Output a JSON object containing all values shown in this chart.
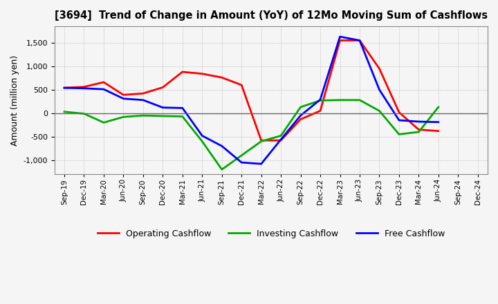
{
  "title": "[3694]  Trend of Change in Amount (YoY) of 12Mo Moving Sum of Cashflows",
  "ylabel": "Amount (million yen)",
  "labels": [
    "Sep-19",
    "Dec-19",
    "Mar-20",
    "Jun-20",
    "Sep-20",
    "Dec-20",
    "Mar-21",
    "Jun-21",
    "Sep-21",
    "Dec-21",
    "Mar-22",
    "Jun-22",
    "Sep-22",
    "Dec-22",
    "Mar-23",
    "Jun-23",
    "Sep-23",
    "Dec-23",
    "Mar-24",
    "Jun-24",
    "Sep-24",
    "Dec-24"
  ],
  "operating": [
    540,
    560,
    660,
    390,
    420,
    550,
    880,
    840,
    760,
    600,
    -580,
    -580,
    -130,
    50,
    1550,
    1550,
    950,
    20,
    -350,
    -380,
    null,
    null
  ],
  "investing": [
    30,
    -10,
    -200,
    -80,
    -50,
    -60,
    -70,
    -600,
    -1200,
    -900,
    -600,
    -480,
    130,
    270,
    280,
    280,
    50,
    -450,
    -400,
    130,
    null,
    null
  ],
  "free": [
    540,
    530,
    510,
    310,
    280,
    120,
    110,
    -480,
    -700,
    -1050,
    -1080,
    -560,
    -50,
    290,
    1630,
    1550,
    500,
    -150,
    -180,
    -190,
    null,
    null
  ],
  "operating_color": "#ff0000",
  "investing_color": "#00aa00",
  "free_color": "#0000ff",
  "ylim": [
    -1300,
    1850
  ],
  "yticks": [
    -1000,
    -500,
    0,
    500,
    1000,
    1500
  ],
  "background_color": "#f5f5f5",
  "grid_color": "#999999"
}
